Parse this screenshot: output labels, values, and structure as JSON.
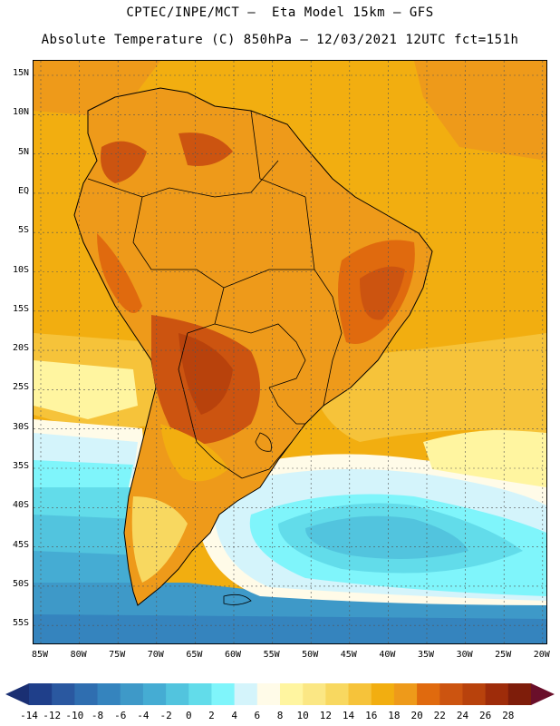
{
  "title": {
    "line1": "CPTEC/INPE/MCT –  Eta Model 15km – GFS",
    "line2": "Absolute Temperature (C) 850hPa – 12/03/2021 12UTC fct=151h"
  },
  "map": {
    "lat_labels": [
      "15N",
      "10N",
      "5N",
      "EQ",
      "5S",
      "10S",
      "15S",
      "20S",
      "25S",
      "30S",
      "35S",
      "40S",
      "45S",
      "50S",
      "55S"
    ],
    "lon_labels": [
      "85W",
      "80W",
      "75W",
      "70W",
      "65W",
      "60W",
      "55W",
      "50W",
      "45W",
      "40W",
      "35W",
      "30W",
      "25W",
      "20W"
    ]
  },
  "colorbar": {
    "labels": [
      "-14",
      "-12",
      "-10",
      "-8",
      "-6",
      "-4",
      "-2",
      "0",
      "2",
      "4",
      "6",
      "8",
      "10",
      "12",
      "14",
      "16",
      "18",
      "20",
      "22",
      "24",
      "26",
      "28"
    ],
    "colors": [
      "#1f3f8a",
      "#2a58a0",
      "#2f6eb0",
      "#3584be",
      "#3e99c8",
      "#45acd3",
      "#52c4de",
      "#62dcea",
      "#7ff5fb",
      "#d4f4fb",
      "#fffbe8",
      "#fff5a0",
      "#fbe784",
      "#f8d860",
      "#f6c33a",
      "#f2ae10",
      "#ee9a1a",
      "#e06a0e",
      "#cc5410",
      "#b8420c",
      "#9e2c0a",
      "#7e1d0a"
    ],
    "left_arrow_color": "#1a2f73",
    "right_arrow_color": "#6a0f2a"
  }
}
